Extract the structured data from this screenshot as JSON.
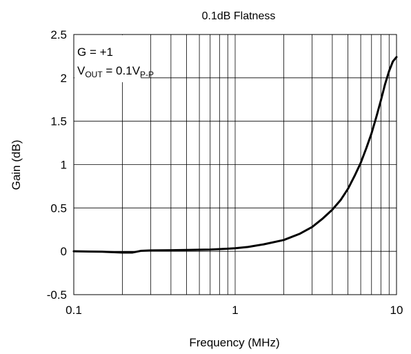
{
  "chart_data": {
    "type": "line",
    "title": "0.1dB Flatness",
    "xlabel": "Frequency (MHz)",
    "ylabel": "Gain (dB)",
    "x_scale": "log",
    "xlim": [
      0.1,
      10
    ],
    "ylim": [
      -0.5,
      2.5
    ],
    "x_ticks": [
      0.1,
      1,
      10
    ],
    "x_tick_labels": [
      "0.1",
      "1",
      "10"
    ],
    "y_ticks": [
      -0.5,
      0,
      0.5,
      1,
      1.5,
      2,
      2.5
    ],
    "y_tick_labels": [
      "-0.5",
      "0",
      "0.5",
      "1",
      "1.5",
      "2",
      "2.5"
    ],
    "grid": true,
    "annotation": {
      "line1": "G = +1",
      "line2_prefix": "V",
      "line2_sub1": "OUT",
      "line2_mid": " = 0.1V",
      "line2_sub2": "P-P"
    },
    "series": [
      {
        "color": "#000000",
        "x": [
          0.1,
          0.15,
          0.2,
          0.23,
          0.26,
          0.3,
          0.4,
          0.5,
          0.6,
          0.7,
          0.8,
          0.9,
          1.0,
          1.2,
          1.5,
          2.0,
          2.5,
          3.0,
          3.5,
          4.0,
          4.5,
          5.0,
          5.5,
          6.0,
          6.5,
          7.0,
          7.5,
          8.0,
          8.5,
          9.0,
          9.5,
          10.0
        ],
        "y": [
          0.0,
          -0.005,
          -0.015,
          -0.015,
          0.005,
          0.01,
          0.012,
          0.015,
          0.018,
          0.02,
          0.025,
          0.03,
          0.035,
          0.05,
          0.08,
          0.13,
          0.2,
          0.28,
          0.38,
          0.48,
          0.59,
          0.72,
          0.87,
          1.02,
          1.19,
          1.36,
          1.55,
          1.74,
          1.93,
          2.08,
          2.19,
          2.24
        ]
      }
    ]
  }
}
